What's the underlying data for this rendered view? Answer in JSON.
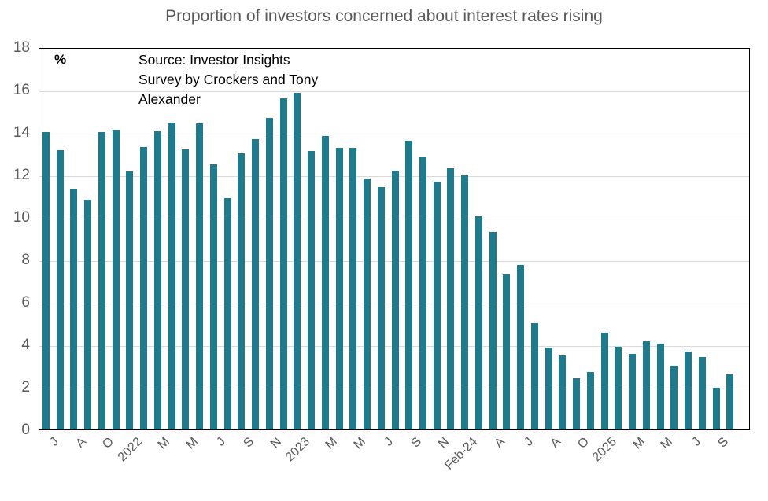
{
  "chart_data": {
    "type": "bar",
    "title": "Proportion of investors concerned about interest rates rising",
    "unit_label": "%",
    "source_lines": [
      "Source: Investor Insights",
      "Survey by Crockers and Tony",
      "Alexander"
    ],
    "ylim": [
      0,
      18
    ],
    "yticks": [
      0,
      2,
      4,
      6,
      8,
      10,
      12,
      14,
      16,
      18
    ],
    "grid": true,
    "legend": "none",
    "xtick_step": 2,
    "xtick_labels": [
      "J",
      "A",
      "O",
      "2022",
      "M",
      "M",
      "J",
      "S",
      "N",
      "2023",
      "M",
      "M",
      "J",
      "S",
      "N",
      "Feb-24",
      "A",
      "J",
      "A",
      "O",
      "2025",
      "M",
      "M",
      "J",
      "S"
    ],
    "values": [
      14.0,
      13.15,
      11.35,
      10.8,
      14.0,
      14.1,
      12.15,
      13.3,
      14.05,
      14.45,
      13.2,
      14.4,
      12.5,
      10.9,
      13.0,
      13.65,
      14.65,
      15.6,
      15.85,
      13.1,
      13.8,
      13.25,
      13.25,
      11.8,
      11.4,
      12.2,
      13.6,
      12.8,
      11.65,
      12.3,
      11.95,
      10.05,
      9.3,
      7.3,
      7.75,
      5.0,
      3.85,
      3.5,
      2.4,
      2.7,
      4.55,
      3.9,
      3.55,
      4.15,
      4.05,
      3.0,
      3.65,
      3.4,
      1.95,
      2.6
    ],
    "colors": {
      "bar": "#1F7A8C",
      "title": "#595959",
      "ticks": "#595959",
      "grid": "#D9D9D9",
      "plot_border": "#000000",
      "background": "#FFFFFF"
    }
  }
}
